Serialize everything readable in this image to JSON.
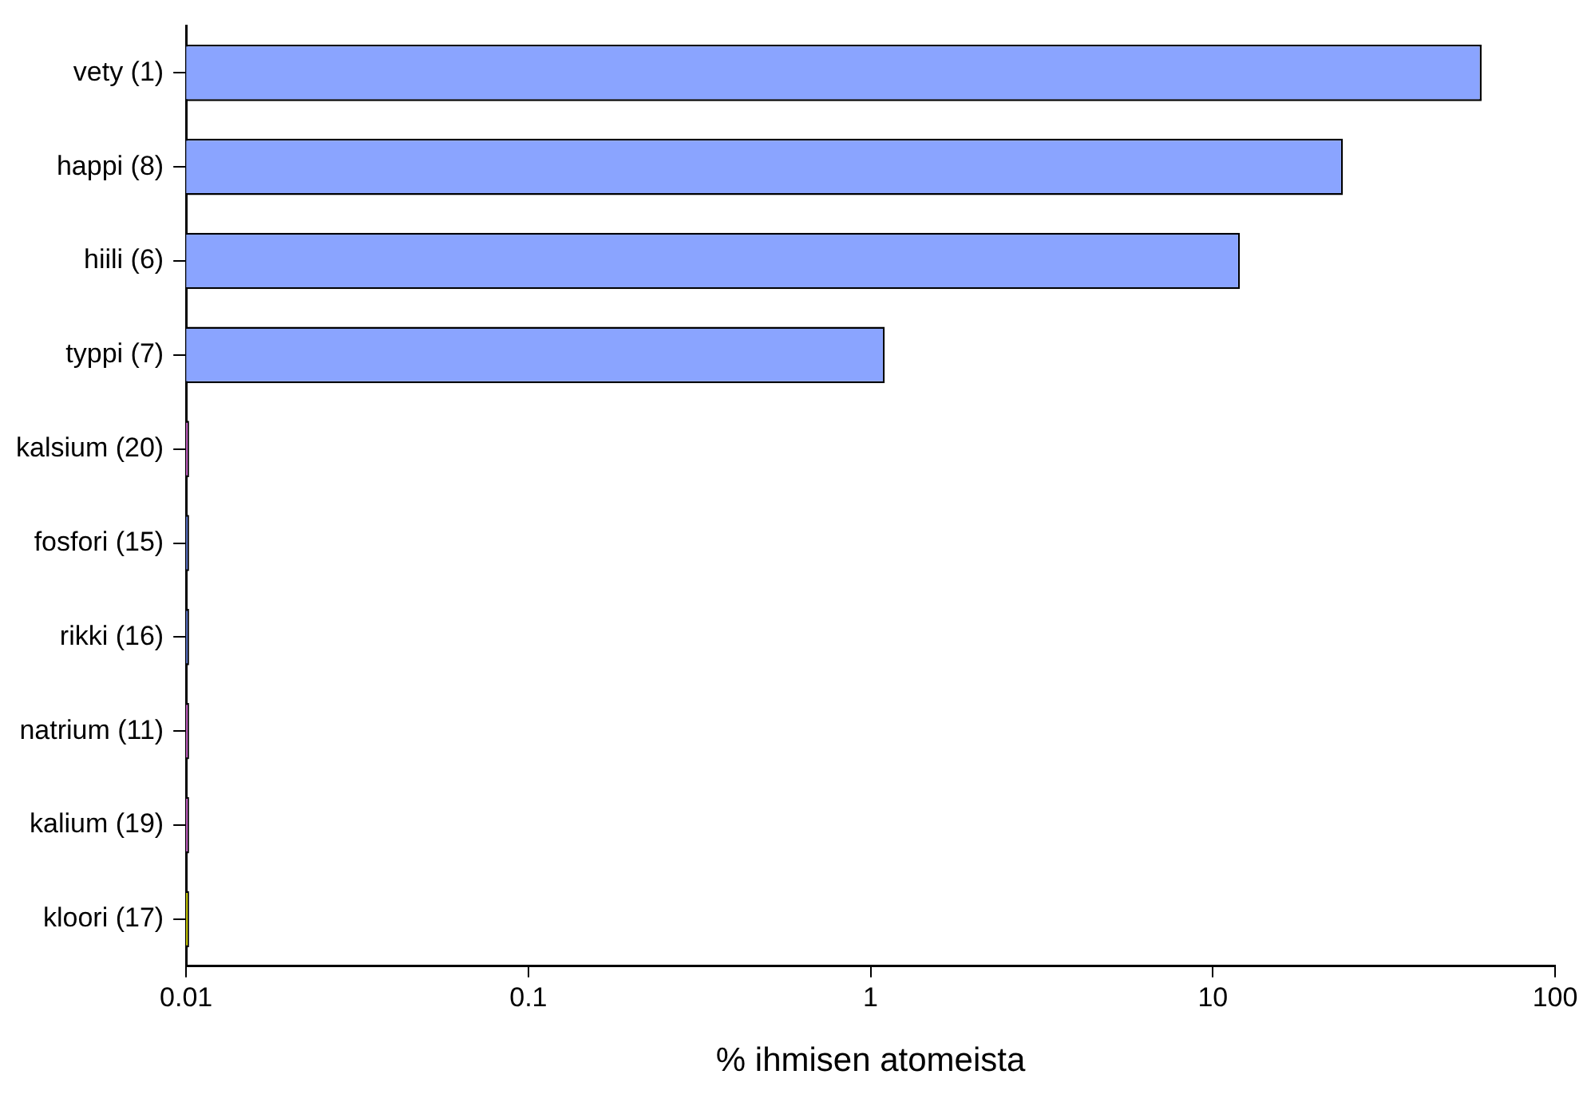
{
  "chart_data": {
    "type": "bar",
    "orientation": "horizontal",
    "xlabel": "% ihmisen atomeista",
    "categories": [
      "vety (1)",
      "happi (8)",
      "hiili (6)",
      "typpi (7)",
      "kalsium (20)",
      "fosfori (15)",
      "rikki (16)",
      "natrium (11)",
      "kalium (19)",
      "kloori (17)"
    ],
    "values": [
      61,
      24,
      12,
      1.1,
      0.0102,
      0.0102,
      0.0102,
      0.0102,
      0.0102,
      0.0102
    ],
    "colors": [
      "#8aa4ff",
      "#8aa4ff",
      "#8aa4ff",
      "#8aa4ff",
      "#e070e0",
      "#6680dd",
      "#6680dd",
      "#e070e0",
      "#e070e0",
      "#e8e800"
    ],
    "log": "x",
    "xlim": [
      0.01,
      100
    ],
    "xticks": [
      0.01,
      0.1,
      1,
      10,
      100
    ],
    "grid": false,
    "legend": false
  }
}
